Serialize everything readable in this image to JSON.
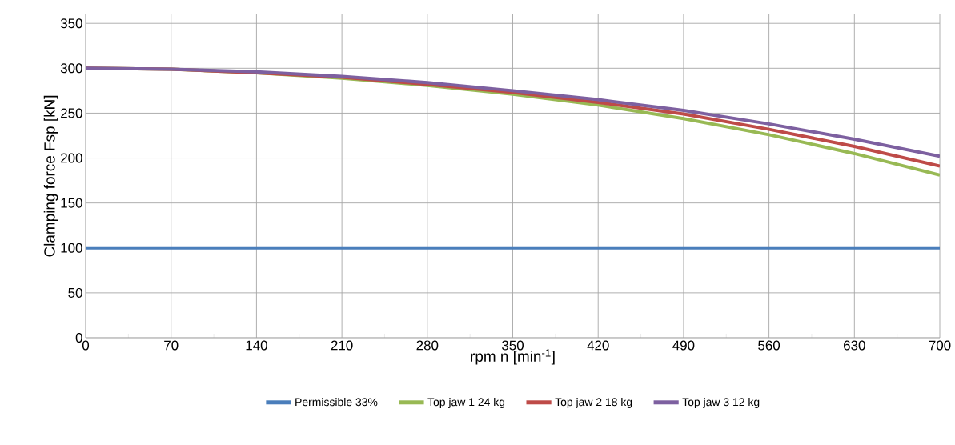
{
  "chart_data": {
    "type": "line",
    "xlabel": "rpm n [min$^{-1}$]",
    "ylabel": "Clamping force Fsp [kN]",
    "x": [
      0,
      70,
      140,
      210,
      280,
      350,
      420,
      490,
      560,
      630,
      700
    ],
    "series": [
      {
        "name": "Permissible 33%",
        "color": "#4a7ebb",
        "values": [
          100,
          100,
          100,
          100,
          100,
          100,
          100,
          100,
          100,
          100,
          100
        ]
      },
      {
        "name": "Top jaw 1 24 kg",
        "color": "#98b954",
        "values": [
          300,
          299,
          295,
          289,
          281,
          271,
          259,
          244,
          226,
          205,
          181
        ]
      },
      {
        "name": "Top jaw 2 18 kg",
        "color": "#be4b48",
        "values": [
          300,
          299,
          295,
          290,
          282,
          273,
          262,
          249,
          232,
          213,
          191
        ]
      },
      {
        "name": "Top jaw 3 12 kg",
        "color": "#7d60a0",
        "values": [
          300,
          299,
          296,
          291,
          284,
          275,
          265,
          253,
          238,
          221,
          202
        ]
      }
    ],
    "xlim": [
      0,
      700
    ],
    "ylim": [
      0,
      360
    ],
    "xticks": [
      0,
      70,
      140,
      210,
      280,
      350,
      420,
      490,
      560,
      630,
      700
    ],
    "yticks": [
      0,
      50,
      100,
      150,
      200,
      250,
      300,
      350
    ],
    "grid": true,
    "legend": "bottom",
    "marker": "none",
    "line_style": "solid"
  }
}
